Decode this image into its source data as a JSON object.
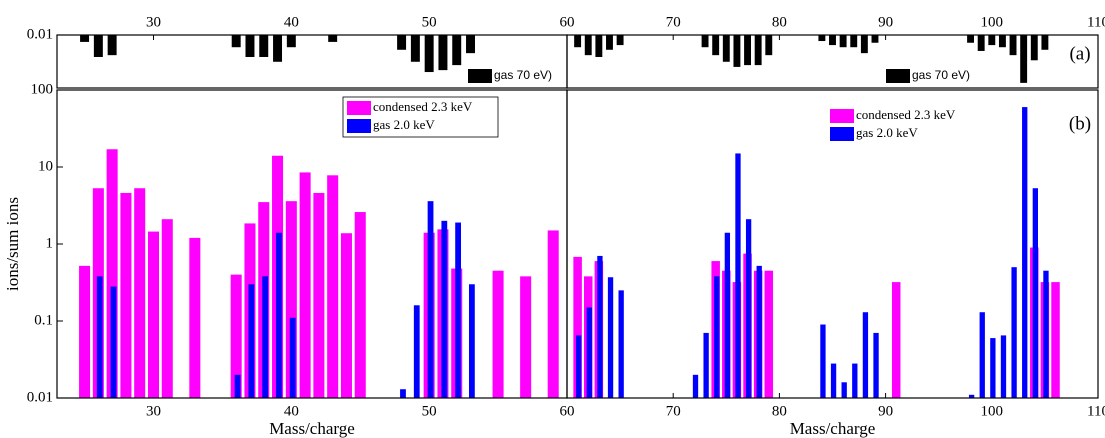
{
  "chart_data": [
    {
      "type": "bar",
      "log_y": true,
      "xlim": [
        23,
        60
      ],
      "ylim": [
        0.1,
        0.01
      ],
      "xticks": [
        30,
        40,
        50
      ],
      "yticks": [
        0.01
      ],
      "legend": "lower right",
      "series": [
        {
          "name": "gas 70 eV)",
          "color": "#000000",
          "x": [
            25,
            26,
            27,
            36,
            37,
            38,
            39,
            40,
            43,
            48,
            49,
            50,
            51,
            52,
            53
          ],
          "values": [
            0.0135,
            0.026,
            0.024,
            0.017,
            0.026,
            0.026,
            0.032,
            0.017,
            0.0135,
            0.019,
            0.032,
            0.05,
            0.046,
            0.037,
            0.022
          ]
        }
      ]
    },
    {
      "type": "bar",
      "log_y": true,
      "xlim": [
        23,
        60
      ],
      "ylim": [
        0.01,
        100
      ],
      "xticks": [
        30,
        40,
        50,
        60
      ],
      "yticks": [
        0.01,
        0.1,
        1,
        10,
        100
      ],
      "xlabel": "Mass/charge",
      "ylabel": "ions/sum ions",
      "legend": "upper right",
      "series": [
        {
          "name": "condensed 2.3 keV",
          "color": "#ff00ff",
          "x": [
            25,
            26,
            27,
            28,
            29,
            30,
            31,
            33,
            36,
            37,
            38,
            39,
            40,
            41,
            42,
            43,
            44,
            45,
            50,
            51,
            52,
            55,
            57,
            59
          ],
          "values": [
            0.52,
            5.3,
            17,
            4.6,
            5.3,
            1.45,
            2.1,
            1.2,
            0.4,
            1.85,
            3.5,
            14,
            3.6,
            8.5,
            4.6,
            7.8,
            1.38,
            2.6,
            1.4,
            1.55,
            0.48,
            0.45,
            0.38,
            1.5
          ]
        },
        {
          "name": "gas 2.0 keV",
          "color": "#0000ff",
          "x": [
            26,
            27,
            36,
            37,
            38,
            39,
            40,
            48,
            49,
            50,
            51,
            52,
            53
          ],
          "values": [
            0.38,
            0.28,
            0.02,
            0.3,
            0.38,
            1.4,
            0.11,
            0.013,
            0.16,
            3.6,
            2.0,
            1.9,
            0.3
          ]
        }
      ]
    },
    {
      "type": "bar",
      "log_y": true,
      "xlim": [
        60,
        110
      ],
      "ylim": [
        0.1,
        0.01
      ],
      "xticks": [
        60,
        70,
        80,
        90,
        100,
        110
      ],
      "legend": "lower right",
      "annotation": "(a)",
      "series": [
        {
          "name": "gas 70 eV)",
          "color": "#000000",
          "x": [
            61,
            62,
            63,
            64,
            65,
            73,
            74,
            75,
            76,
            77,
            78,
            79,
            84,
            85,
            86,
            87,
            88,
            89,
            98,
            99,
            100,
            101,
            102,
            103,
            104,
            105
          ],
          "values": [
            0.017,
            0.024,
            0.026,
            0.019,
            0.0155,
            0.017,
            0.024,
            0.032,
            0.04,
            0.037,
            0.037,
            0.024,
            0.013,
            0.0155,
            0.017,
            0.017,
            0.022,
            0.014,
            0.014,
            0.02,
            0.0155,
            0.017,
            0.024,
            0.08,
            0.03,
            0.019
          ]
        }
      ]
    },
    {
      "type": "bar",
      "log_y": true,
      "xlim": [
        60,
        110
      ],
      "ylim": [
        0.01,
        100
      ],
      "xticks": [
        70,
        80,
        90,
        100,
        110
      ],
      "xlabel": "Mass/charge",
      "legend": "upper right",
      "annotation": "(b)",
      "series": [
        {
          "name": "condensed 2.3 keV",
          "color": "#ff00ff",
          "x": [
            61,
            62,
            63,
            74,
            75,
            76,
            77,
            78,
            79,
            91,
            104,
            105,
            106
          ],
          "values": [
            0.68,
            0.38,
            0.6,
            0.6,
            0.45,
            0.32,
            0.75,
            0.45,
            0.45,
            0.32,
            0.9,
            0.32,
            0.32
          ]
        },
        {
          "name": "gas 2.0 keV",
          "color": "#0000ff",
          "x": [
            61,
            62,
            63,
            64,
            65,
            72,
            73,
            74,
            75,
            76,
            77,
            78,
            84,
            85,
            86,
            87,
            88,
            89,
            98,
            99,
            100,
            101,
            102,
            103,
            104,
            105
          ],
          "values": [
            0.065,
            0.15,
            0.7,
            0.37,
            0.25,
            0.02,
            0.07,
            0.38,
            1.4,
            15,
            2.1,
            0.52,
            0.09,
            0.028,
            0.016,
            0.028,
            0.13,
            0.07,
            0.011,
            0.13,
            0.06,
            0.065,
            0.5,
            60,
            5.3,
            0.45
          ]
        }
      ]
    }
  ]
}
